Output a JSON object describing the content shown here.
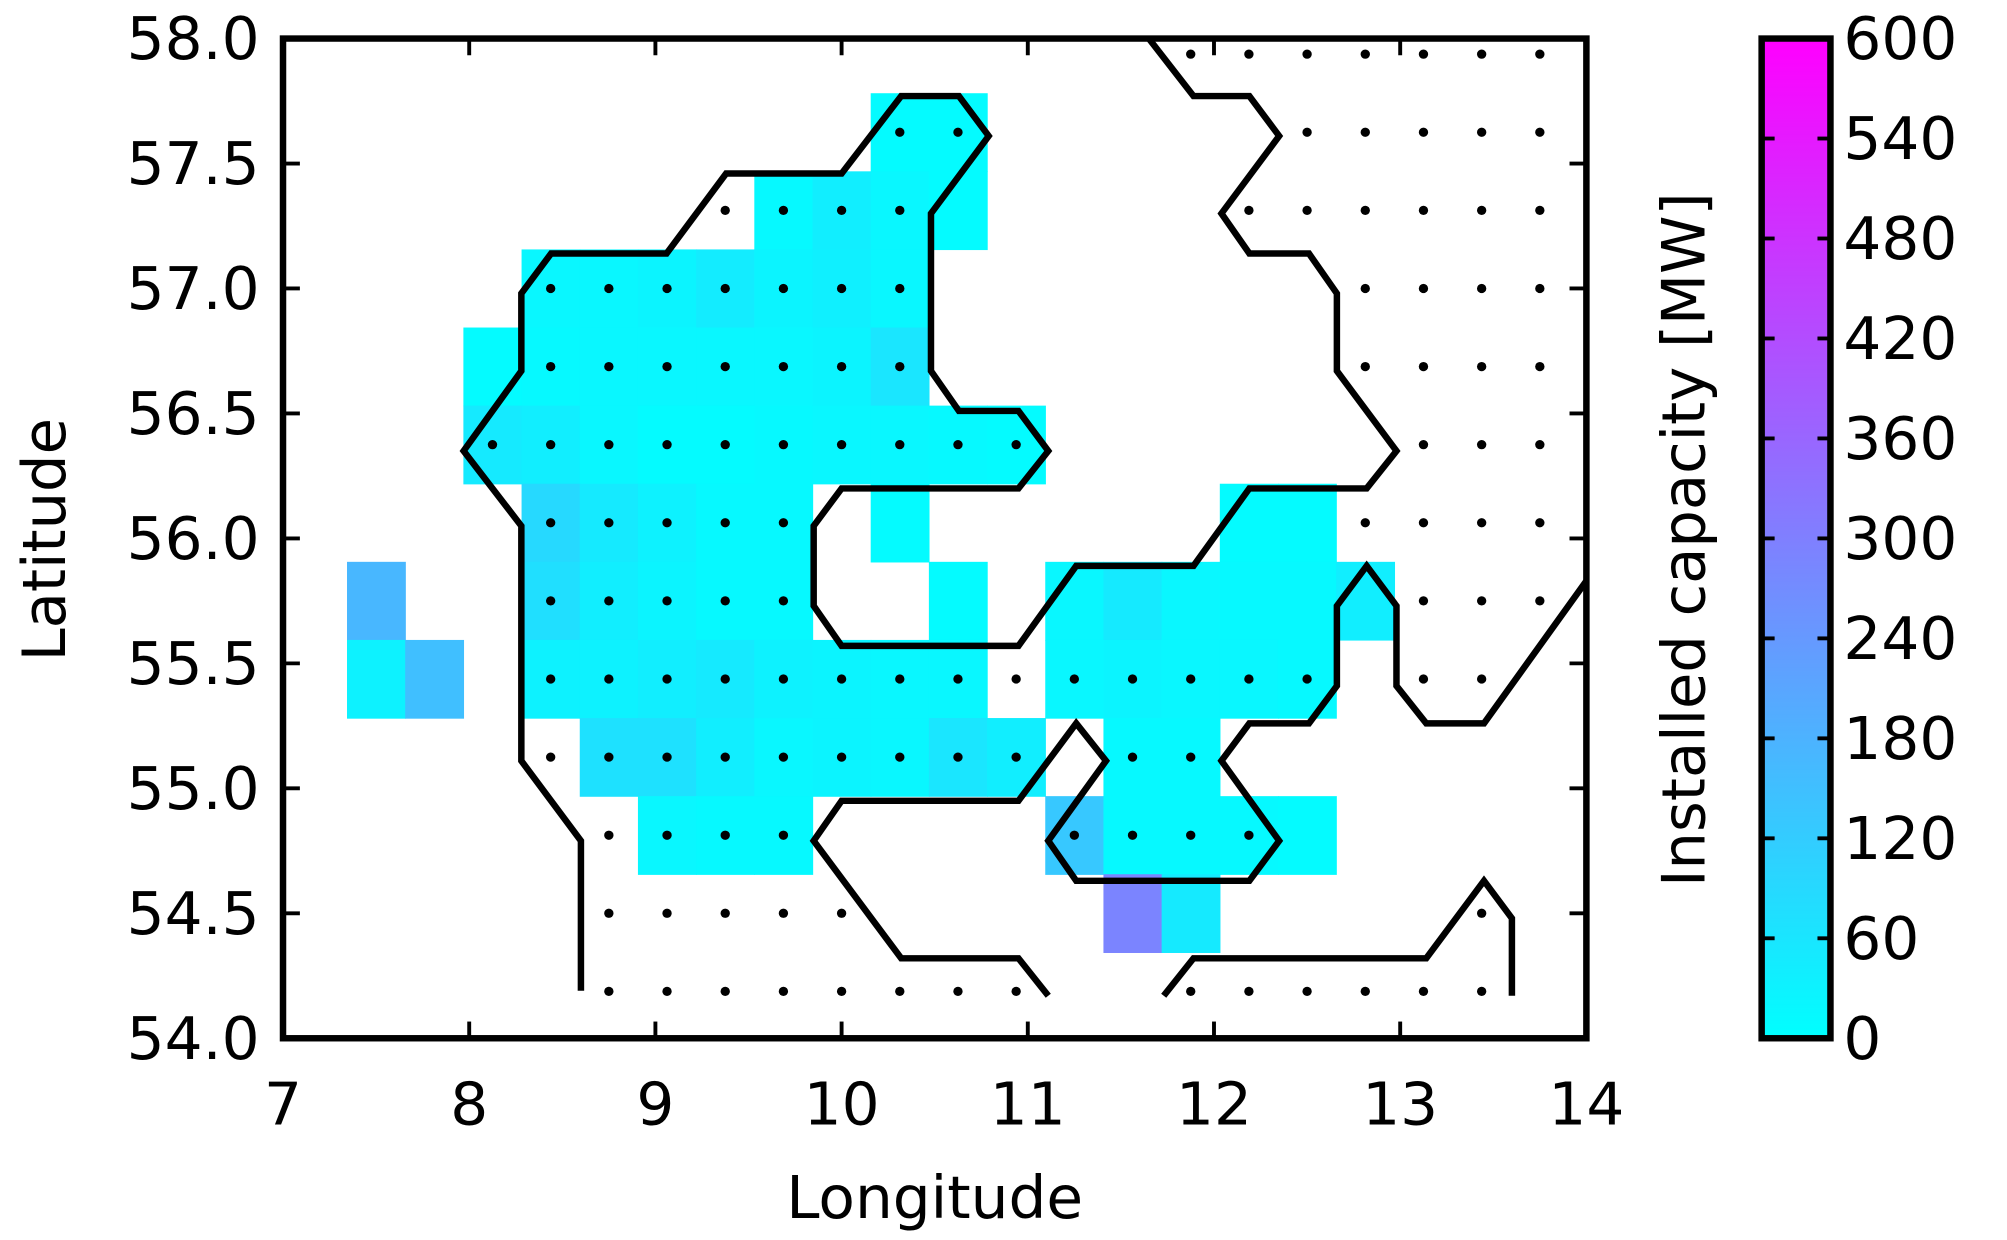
{
  "chart_data": {
    "type": "heatmap",
    "xlabel": "Longitude",
    "ylabel": "Latitude",
    "colorbar_label": "Installed capacity [MW]",
    "xlim": [
      7,
      14
    ],
    "xticks": [
      7,
      8,
      9,
      10,
      11,
      12,
      13,
      14
    ],
    "ylim": [
      54,
      58
    ],
    "yticks": [
      {
        "value": 54,
        "label": "54.0"
      },
      54.5,
      {
        "value": 55,
        "label": "55.0"
      },
      55.5,
      {
        "value": 56,
        "label": "56.0"
      },
      56.5,
      {
        "value": 57,
        "label": "57.0"
      },
      57.5,
      {
        "value": 58,
        "label": "58.0"
      }
    ],
    "clim": [
      0,
      600
    ],
    "cticks": [
      0,
      60,
      120,
      180,
      240,
      300,
      360,
      420,
      480,
      540,
      600
    ],
    "cmap": [
      "#00ffff",
      "#ff00ff"
    ],
    "cells": [
      {
        "y": 57.625,
        "x": [
          10.3125,
          10.625
        ],
        "values": [
          10,
          10
        ]
      },
      {
        "y": 57.3125,
        "x": [
          9.6875,
          10.0,
          10.3125,
          10.625
        ],
        "values": [
          15,
          40,
          20,
          10
        ]
      },
      {
        "y": 57.0,
        "x": [
          8.4375,
          8.75,
          9.0625,
          9.375,
          9.6875,
          10.0,
          10.3125
        ],
        "values": [
          20,
          20,
          25,
          45,
          25,
          35,
          20
        ]
      },
      {
        "y": 56.6875,
        "x": [
          8.125,
          8.4375,
          8.75,
          9.0625,
          9.375,
          9.6875,
          10.0,
          10.3125
        ],
        "values": [
          10,
          15,
          20,
          20,
          20,
          20,
          25,
          60
        ]
      },
      {
        "y": 56.375,
        "x": [
          8.125,
          8.4375,
          8.75,
          9.0625,
          9.375,
          9.6875,
          10.0,
          10.3125,
          10.625,
          10.9375
        ],
        "values": [
          50,
          40,
          20,
          10,
          10,
          15,
          20,
          20,
          15,
          10
        ]
      },
      {
        "y": 56.0625,
        "x": [
          8.4375,
          8.75,
          9.0625,
          9.375,
          9.6875,
          10.3125,
          12.1875,
          12.5
        ],
        "values": [
          90,
          50,
          30,
          15,
          15,
          10,
          10,
          10
        ]
      },
      {
        "y": 55.75,
        "x": [
          7.5,
          8.4375,
          8.75,
          9.0625,
          9.375,
          9.6875,
          10.625,
          11.25,
          11.5625,
          11.875,
          12.1875,
          12.5,
          12.8125
        ],
        "values": [
          170,
          75,
          40,
          25,
          15,
          15,
          10,
          20,
          50,
          20,
          15,
          15,
          40
        ]
      },
      {
        "y": 55.4375,
        "x": [
          7.5,
          7.8125,
          8.4375,
          8.75,
          9.0625,
          9.375,
          9.6875,
          10.0,
          10.3125,
          10.625,
          11.25,
          11.5625,
          11.875,
          12.1875,
          12.5
        ],
        "values": [
          30,
          150,
          30,
          30,
          40,
          50,
          30,
          25,
          20,
          20,
          20,
          25,
          20,
          20,
          15
        ]
      },
      {
        "y": 55.125,
        "x": [
          8.75,
          9.0625,
          9.375,
          9.6875,
          10.0,
          10.3125,
          10.625,
          10.9375,
          11.5625,
          11.875
        ],
        "values": [
          70,
          70,
          40,
          20,
          25,
          20,
          60,
          40,
          15,
          15
        ]
      },
      {
        "y": 54.8125,
        "x": [
          9.0625,
          9.375,
          9.6875,
          11.25,
          11.5625,
          11.875,
          12.1875,
          12.5
        ],
        "values": [
          20,
          15,
          15,
          130,
          15,
          15,
          15,
          10
        ]
      },
      {
        "y": 54.5,
        "x": [
          11.5625,
          11.875
        ],
        "values": [
          290,
          50
        ]
      }
    ],
    "sites": [
      {
        "y": 57.9375,
        "x": [
          11.875,
          12.1875,
          12.5,
          12.8125,
          13.125,
          13.4375,
          13.75
        ]
      },
      {
        "y": 57.625,
        "x": [
          10.3125,
          10.625,
          12.5,
          12.8125,
          13.125,
          13.4375,
          13.75
        ]
      },
      {
        "y": 57.3125,
        "x": [
          9.375,
          9.6875,
          10.0,
          10.3125,
          12.1875,
          12.5,
          12.8125,
          13.125,
          13.4375,
          13.75
        ]
      },
      {
        "y": 57.0,
        "x": [
          8.4375,
          8.75,
          9.0625,
          9.375,
          9.6875,
          10.0,
          10.3125,
          12.8125,
          13.125,
          13.4375,
          13.75
        ]
      },
      {
        "y": 56.6875,
        "x": [
          8.4375,
          8.75,
          9.0625,
          9.375,
          9.6875,
          10.0,
          10.3125,
          12.8125,
          13.125,
          13.4375,
          13.75
        ]
      },
      {
        "y": 56.375,
        "x": [
          8.125,
          8.4375,
          8.75,
          9.0625,
          9.375,
          9.6875,
          10.0,
          10.3125,
          10.625,
          10.9375,
          13.125,
          13.4375,
          13.75
        ]
      },
      {
        "y": 56.0625,
        "x": [
          8.4375,
          8.75,
          9.0625,
          9.375,
          9.6875,
          12.8125,
          13.125,
          13.4375,
          13.75
        ]
      },
      {
        "y": 55.75,
        "x": [
          8.4375,
          8.75,
          9.0625,
          9.375,
          9.6875,
          13.125,
          13.4375,
          13.75
        ]
      },
      {
        "y": 55.4375,
        "x": [
          8.4375,
          8.75,
          9.0625,
          9.375,
          9.6875,
          10.0,
          10.3125,
          10.625,
          10.9375,
          11.25,
          11.5625,
          11.875,
          12.1875,
          12.5,
          13.125,
          13.4375
        ]
      },
      {
        "y": 55.125,
        "x": [
          8.4375,
          8.75,
          9.0625,
          9.375,
          9.6875,
          10.0,
          10.3125,
          10.625,
          10.9375,
          11.5625,
          11.875
        ]
      },
      {
        "y": 54.8125,
        "x": [
          8.75,
          9.0625,
          9.375,
          9.6875,
          11.25,
          11.5625,
          11.875,
          12.1875
        ]
      },
      {
        "y": 54.5,
        "x": [
          8.75,
          9.0625,
          9.375,
          9.6875,
          10.0,
          13.4375
        ]
      },
      {
        "y": 54.1875,
        "x": [
          8.75,
          9.0625,
          9.375,
          9.6875,
          10.0,
          10.3125,
          10.625,
          10.9375,
          11.875,
          12.1875,
          12.5,
          12.8125,
          13.125,
          13.4375
        ]
      }
    ],
    "coastline": [
      {
        "x": [
          8.6,
          8.6,
          8.28,
          8.28,
          7.97,
          8.28,
          8.28,
          8.44,
          9.06,
          9.38,
          10.0,
          10.32,
          10.63,
          10.79,
          10.48,
          10.48,
          10.63,
          10.95,
          11.11,
          10.95,
          10.0,
          9.85,
          9.85,
          10.0,
          10.95,
          11.26,
          11.89,
          12.19,
          12.82,
          12.98,
          12.66,
          12.66,
          12.51,
          12.19,
          12.04,
          12.35,
          12.19,
          11.89,
          11.65
        ],
        "y": [
          54.19,
          54.79,
          55.11,
          56.05,
          56.35,
          56.67,
          56.98,
          57.14,
          57.14,
          57.46,
          57.46,
          57.77,
          57.77,
          57.61,
          57.3,
          56.67,
          56.51,
          56.51,
          56.35,
          56.2,
          56.2,
          56.05,
          55.73,
          55.57,
          55.57,
          55.89,
          55.89,
          56.2,
          56.2,
          56.35,
          56.67,
          56.98,
          57.14,
          57.14,
          57.3,
          57.61,
          57.77,
          57.77,
          58.0
        ]
      },
      {
        "x": [
          14.0,
          13.45,
          13.14,
          12.98,
          12.98,
          12.82,
          12.66,
          12.66,
          12.51,
          12.19,
          12.04,
          12.35,
          12.19,
          11.26,
          11.11,
          11.42,
          11.26,
          10.95,
          10.0,
          9.85,
          10.32,
          10.95,
          11.11
        ],
        "y": [
          55.83,
          55.26,
          55.26,
          55.41,
          55.73,
          55.89,
          55.73,
          55.41,
          55.26,
          55.26,
          55.11,
          54.79,
          54.63,
          54.63,
          54.79,
          55.11,
          55.26,
          54.95,
          54.95,
          54.79,
          54.32,
          54.32,
          54.17
        ]
      },
      {
        "x": [
          11.73,
          11.89,
          13.14,
          13.45,
          13.6,
          13.6
        ],
        "y": [
          54.17,
          54.32,
          54.32,
          54.63,
          54.48,
          54.17
        ]
      }
    ]
  }
}
